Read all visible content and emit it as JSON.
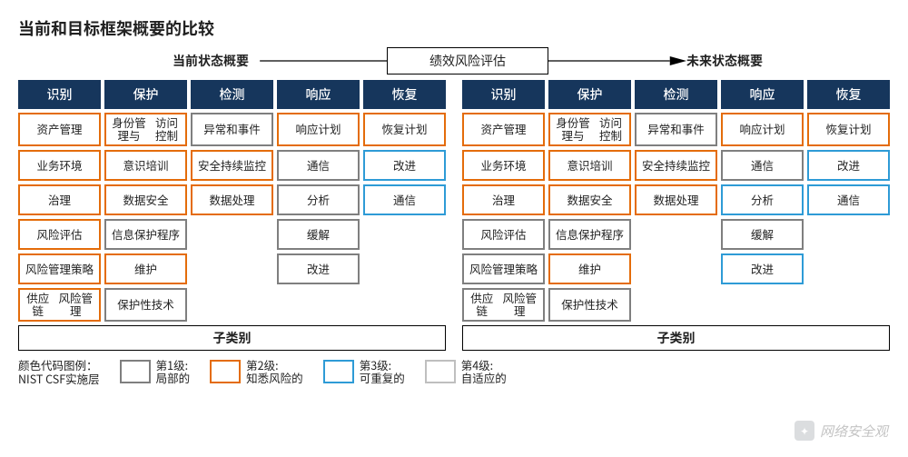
{
  "title": "当前和目标框架概要的比较",
  "top": {
    "current_label": "当前状态概要",
    "mid_label": "绩效风险评估",
    "future_label": "未来状态概要"
  },
  "colors": {
    "header_bg": "#16365c",
    "tier1": "#7f7f7f",
    "tier2": "#e46c0a",
    "tier3": "#2e9bd6",
    "tier4": "#bfbfbf",
    "arrow": "#000000"
  },
  "headers": [
    "识别",
    "保护",
    "检测",
    "响应",
    "恢复"
  ],
  "rows": 6,
  "current": [
    [
      {
        "t": "资产管理",
        "c": "tier2"
      },
      {
        "t": "身份管理与\n访问控制",
        "c": "tier2"
      },
      {
        "t": "异常和事件",
        "c": "tier1"
      },
      {
        "t": "响应计划",
        "c": "tier2"
      },
      {
        "t": "恢复计划",
        "c": "tier2"
      }
    ],
    [
      {
        "t": "业务环境",
        "c": "tier2"
      },
      {
        "t": "意识培训",
        "c": "tier2"
      },
      {
        "t": "安全持续\n监控",
        "c": "tier2"
      },
      {
        "t": "通信",
        "c": "tier1"
      },
      {
        "t": "改进",
        "c": "tier3"
      }
    ],
    [
      {
        "t": "治理",
        "c": "tier2"
      },
      {
        "t": "数据安全",
        "c": "tier2"
      },
      {
        "t": "数据处理",
        "c": "tier2"
      },
      {
        "t": "分析",
        "c": "tier1"
      },
      {
        "t": "通信",
        "c": "tier3"
      }
    ],
    [
      {
        "t": "风险评估",
        "c": "tier2"
      },
      {
        "t": "信息保护\n程序",
        "c": "tier1"
      },
      null,
      {
        "t": "缓解",
        "c": "tier1"
      },
      null
    ],
    [
      {
        "t": "风险管理\n策略",
        "c": "tier2"
      },
      {
        "t": "维护",
        "c": "tier2"
      },
      null,
      {
        "t": "改进",
        "c": "tier1"
      },
      null
    ],
    [
      {
        "t": "供应链\n风险管理",
        "c": "tier2"
      },
      {
        "t": "保护性\n技术",
        "c": "tier1"
      },
      null,
      null,
      null
    ]
  ],
  "future": [
    [
      {
        "t": "资产管理",
        "c": "tier2"
      },
      {
        "t": "身份管理与\n访问控制",
        "c": "tier2"
      },
      {
        "t": "异常和事件",
        "c": "tier1"
      },
      {
        "t": "响应计划",
        "c": "tier2"
      },
      {
        "t": "恢复计划",
        "c": "tier2"
      }
    ],
    [
      {
        "t": "业务环境",
        "c": "tier2"
      },
      {
        "t": "意识培训",
        "c": "tier2"
      },
      {
        "t": "安全持续\n监控",
        "c": "tier2"
      },
      {
        "t": "通信",
        "c": "tier1"
      },
      {
        "t": "改进",
        "c": "tier3"
      }
    ],
    [
      {
        "t": "治理",
        "c": "tier2"
      },
      {
        "t": "数据安全",
        "c": "tier2"
      },
      {
        "t": "数据处理",
        "c": "tier2"
      },
      {
        "t": "分析",
        "c": "tier3"
      },
      {
        "t": "通信",
        "c": "tier3"
      }
    ],
    [
      {
        "t": "风险评估",
        "c": "tier1"
      },
      {
        "t": "信息保护\n程序",
        "c": "tier1"
      },
      null,
      {
        "t": "缓解",
        "c": "tier1"
      },
      null
    ],
    [
      {
        "t": "风险管理\n策略",
        "c": "tier1"
      },
      {
        "t": "维护",
        "c": "tier2"
      },
      null,
      {
        "t": "改进",
        "c": "tier3"
      },
      null
    ],
    [
      {
        "t": "供应链\n风险管理",
        "c": "tier1"
      },
      {
        "t": "保护性\n技术",
        "c": "tier1"
      },
      null,
      null,
      null
    ]
  ],
  "sub_label": "子类别",
  "legend": {
    "label": "颜色代码图例：\nNIST CSF实施层",
    "items": [
      {
        "title": "第1级:",
        "sub": "局部的",
        "c": "tier1"
      },
      {
        "title": "第2级:",
        "sub": "知悉风险的",
        "c": "tier2"
      },
      {
        "title": "第3级:",
        "sub": "可重复的",
        "c": "tier3"
      },
      {
        "title": "第4级:",
        "sub": "自适应的",
        "c": "tier4"
      }
    ]
  },
  "watermark": "网络安全观"
}
